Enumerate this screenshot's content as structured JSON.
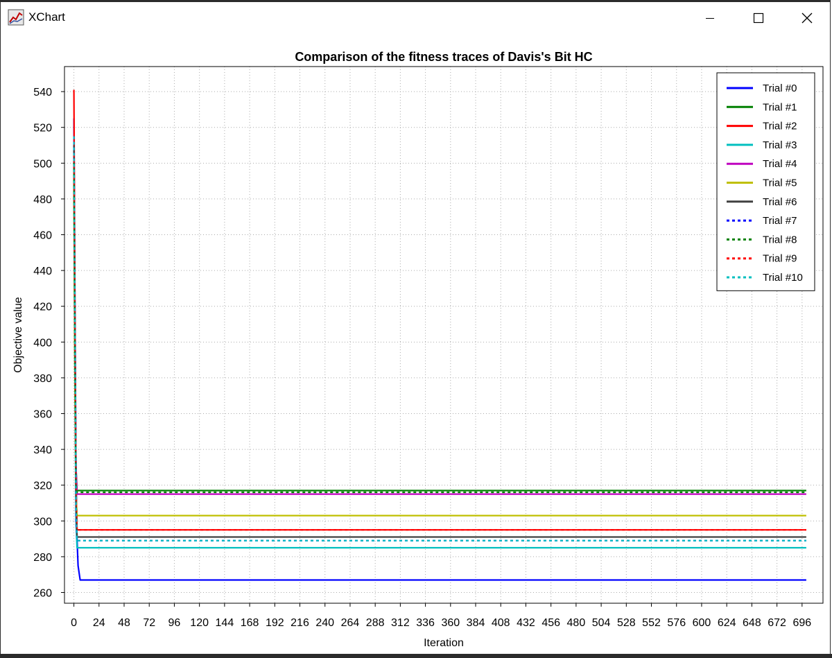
{
  "window": {
    "title": "XChart",
    "icon": "xchart-app-icon",
    "controls": [
      "minimize-icon",
      "maximize-icon",
      "close-icon"
    ]
  },
  "chart_data": {
    "type": "line",
    "title": "Comparison of the fitness traces of Davis's Bit HC",
    "xlabel": "Iteration",
    "ylabel": "Objective value",
    "xlim": [
      -9,
      716
    ],
    "ylim": [
      254,
      554
    ],
    "xticks": [
      0,
      24,
      48,
      72,
      96,
      120,
      144,
      168,
      192,
      216,
      240,
      264,
      288,
      312,
      336,
      360,
      384,
      408,
      432,
      456,
      480,
      504,
      528,
      552,
      576,
      600,
      624,
      648,
      672,
      696
    ],
    "yticks": [
      260,
      280,
      300,
      320,
      340,
      360,
      380,
      400,
      420,
      440,
      460,
      480,
      500,
      520,
      540
    ],
    "grid": true,
    "legend": "top-right",
    "series": [
      {
        "name": "Trial #0",
        "color": "#0000ff",
        "dash": "solid",
        "x": [
          0,
          1,
          2,
          3,
          4,
          6,
          700
        ],
        "y": [
          525,
          420,
          330,
          290,
          275,
          267,
          267
        ]
      },
      {
        "name": "Trial #1",
        "color": "#008000",
        "dash": "solid",
        "x": [
          0,
          1,
          2,
          3,
          700
        ],
        "y": [
          500,
          380,
          330,
          317,
          317
        ]
      },
      {
        "name": "Trial #2",
        "color": "#ff0000",
        "dash": "solid",
        "x": [
          0,
          1,
          2,
          3,
          700
        ],
        "y": [
          541,
          420,
          320,
          295,
          295
        ]
      },
      {
        "name": "Trial #3",
        "color": "#00bfbf",
        "dash": "solid",
        "x": [
          0,
          1,
          2,
          3,
          700
        ],
        "y": [
          490,
          380,
          300,
          285,
          285
        ]
      },
      {
        "name": "Trial #4",
        "color": "#bf00bf",
        "dash": "solid",
        "x": [
          0,
          1,
          2,
          3,
          700
        ],
        "y": [
          505,
          390,
          330,
          315,
          315
        ]
      },
      {
        "name": "Trial #5",
        "color": "#bfbf00",
        "dash": "solid",
        "x": [
          0,
          1,
          2,
          3,
          700
        ],
        "y": [
          495,
          370,
          315,
          303,
          303
        ]
      },
      {
        "name": "Trial #6",
        "color": "#404040",
        "dash": "solid",
        "x": [
          0,
          1,
          2,
          3,
          700
        ],
        "y": [
          510,
          400,
          310,
          291,
          291
        ]
      },
      {
        "name": "Trial #7",
        "color": "#0000ff",
        "dash": "dash",
        "x": [
          0,
          1,
          2,
          3,
          700
        ],
        "y": [
          515,
          400,
          300,
          289,
          289
        ]
      },
      {
        "name": "Trial #8",
        "color": "#008000",
        "dash": "dash",
        "x": [
          0,
          1,
          2,
          3,
          700
        ],
        "y": [
          500,
          390,
          320,
          316,
          316
        ]
      },
      {
        "name": "Trial #9",
        "color": "#ff0000",
        "dash": "dash",
        "x": [
          0,
          1,
          2,
          3,
          700
        ],
        "y": [
          505,
          400,
          315,
          295,
          295
        ]
      },
      {
        "name": "Trial #10",
        "color": "#00bfbf",
        "dash": "dash",
        "x": [
          0,
          1,
          2,
          3,
          700
        ],
        "y": [
          515,
          410,
          310,
          289,
          289
        ]
      }
    ]
  }
}
